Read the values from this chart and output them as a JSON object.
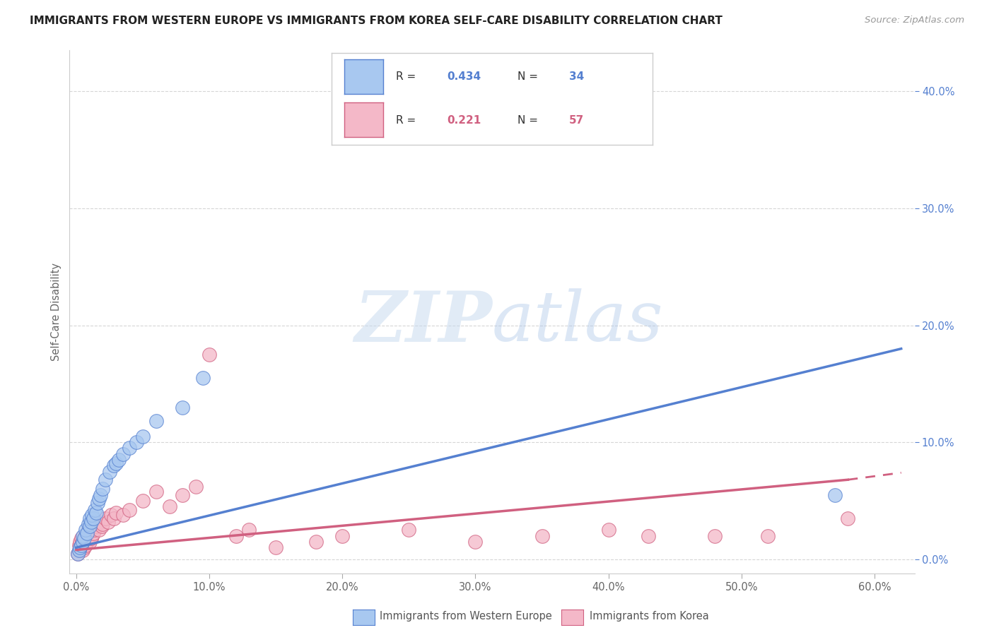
{
  "title": "IMMIGRANTS FROM WESTERN EUROPE VS IMMIGRANTS FROM KOREA SELF-CARE DISABILITY CORRELATION CHART",
  "source": "Source: ZipAtlas.com",
  "xlabel_ticks": [
    "0.0%",
    "",
    "10.0%",
    "",
    "20.0%",
    "",
    "30.0%",
    "",
    "40.0%",
    "",
    "50.0%",
    "",
    "60.0%"
  ],
  "xlabel_tick_vals": [
    0.0,
    0.05,
    0.1,
    0.15,
    0.2,
    0.25,
    0.3,
    0.35,
    0.4,
    0.45,
    0.5,
    0.55,
    0.6
  ],
  "ylabel": "Self-Care Disability",
  "ylabel_ticks_right": [
    "0.0%",
    "10.0%",
    "20.0%",
    "30.0%",
    "40.0%"
  ],
  "ylabel_tick_vals": [
    0.0,
    0.1,
    0.2,
    0.3,
    0.4
  ],
  "xlim": [
    -0.005,
    0.63
  ],
  "ylim": [
    -0.012,
    0.435
  ],
  "legend_blue_r": "0.434",
  "legend_blue_n": "34",
  "legend_pink_r": "0.221",
  "legend_pink_n": "57",
  "legend_label_blue": "Immigrants from Western Europe",
  "legend_label_pink": "Immigrants from Korea",
  "blue_color": "#A8C8F0",
  "pink_color": "#F4B8C8",
  "blue_line_color": "#5580D0",
  "pink_line_color": "#D06080",
  "blue_edge_color": "#5580D0",
  "pink_edge_color": "#D06080",
  "watermark_zip": "ZIP",
  "watermark_atlas": "atlas",
  "blue_scatter_x": [
    0.001,
    0.002,
    0.003,
    0.004,
    0.005,
    0.005,
    0.006,
    0.007,
    0.008,
    0.009,
    0.01,
    0.01,
    0.011,
    0.012,
    0.013,
    0.014,
    0.015,
    0.016,
    0.017,
    0.018,
    0.02,
    0.022,
    0.025,
    0.028,
    0.03,
    0.032,
    0.035,
    0.04,
    0.045,
    0.05,
    0.06,
    0.08,
    0.095,
    0.57
  ],
  "blue_scatter_y": [
    0.005,
    0.008,
    0.01,
    0.012,
    0.015,
    0.02,
    0.018,
    0.025,
    0.022,
    0.03,
    0.028,
    0.035,
    0.032,
    0.038,
    0.035,
    0.042,
    0.04,
    0.048,
    0.052,
    0.055,
    0.06,
    0.068,
    0.075,
    0.08,
    0.082,
    0.085,
    0.09,
    0.095,
    0.1,
    0.105,
    0.118,
    0.13,
    0.155,
    0.055
  ],
  "pink_scatter_x": [
    0.001,
    0.002,
    0.002,
    0.003,
    0.003,
    0.004,
    0.004,
    0.005,
    0.005,
    0.006,
    0.006,
    0.007,
    0.007,
    0.008,
    0.008,
    0.009,
    0.009,
    0.01,
    0.01,
    0.011,
    0.011,
    0.012,
    0.012,
    0.013,
    0.014,
    0.015,
    0.016,
    0.017,
    0.018,
    0.019,
    0.02,
    0.022,
    0.024,
    0.026,
    0.028,
    0.03,
    0.035,
    0.04,
    0.05,
    0.06,
    0.07,
    0.08,
    0.09,
    0.1,
    0.12,
    0.13,
    0.15,
    0.18,
    0.2,
    0.25,
    0.3,
    0.35,
    0.4,
    0.43,
    0.48,
    0.52,
    0.58
  ],
  "pink_scatter_y": [
    0.005,
    0.008,
    0.012,
    0.01,
    0.015,
    0.012,
    0.018,
    0.008,
    0.015,
    0.01,
    0.018,
    0.012,
    0.02,
    0.015,
    0.022,
    0.018,
    0.025,
    0.015,
    0.02,
    0.018,
    0.025,
    0.02,
    0.028,
    0.022,
    0.025,
    0.028,
    0.03,
    0.025,
    0.032,
    0.028,
    0.03,
    0.035,
    0.032,
    0.038,
    0.035,
    0.04,
    0.038,
    0.042,
    0.05,
    0.058,
    0.045,
    0.055,
    0.062,
    0.175,
    0.02,
    0.025,
    0.01,
    0.015,
    0.02,
    0.025,
    0.015,
    0.02,
    0.025,
    0.02,
    0.02,
    0.02,
    0.035
  ],
  "blue_line_x0": 0.0,
  "blue_line_x1": 0.62,
  "blue_line_y0": 0.01,
  "blue_line_y1": 0.18,
  "pink_line_x0": 0.0,
  "pink_line_x1": 0.58,
  "pink_line_xd": 0.62,
  "pink_line_y0": 0.008,
  "pink_line_y1": 0.068,
  "pink_line_yd": 0.074
}
